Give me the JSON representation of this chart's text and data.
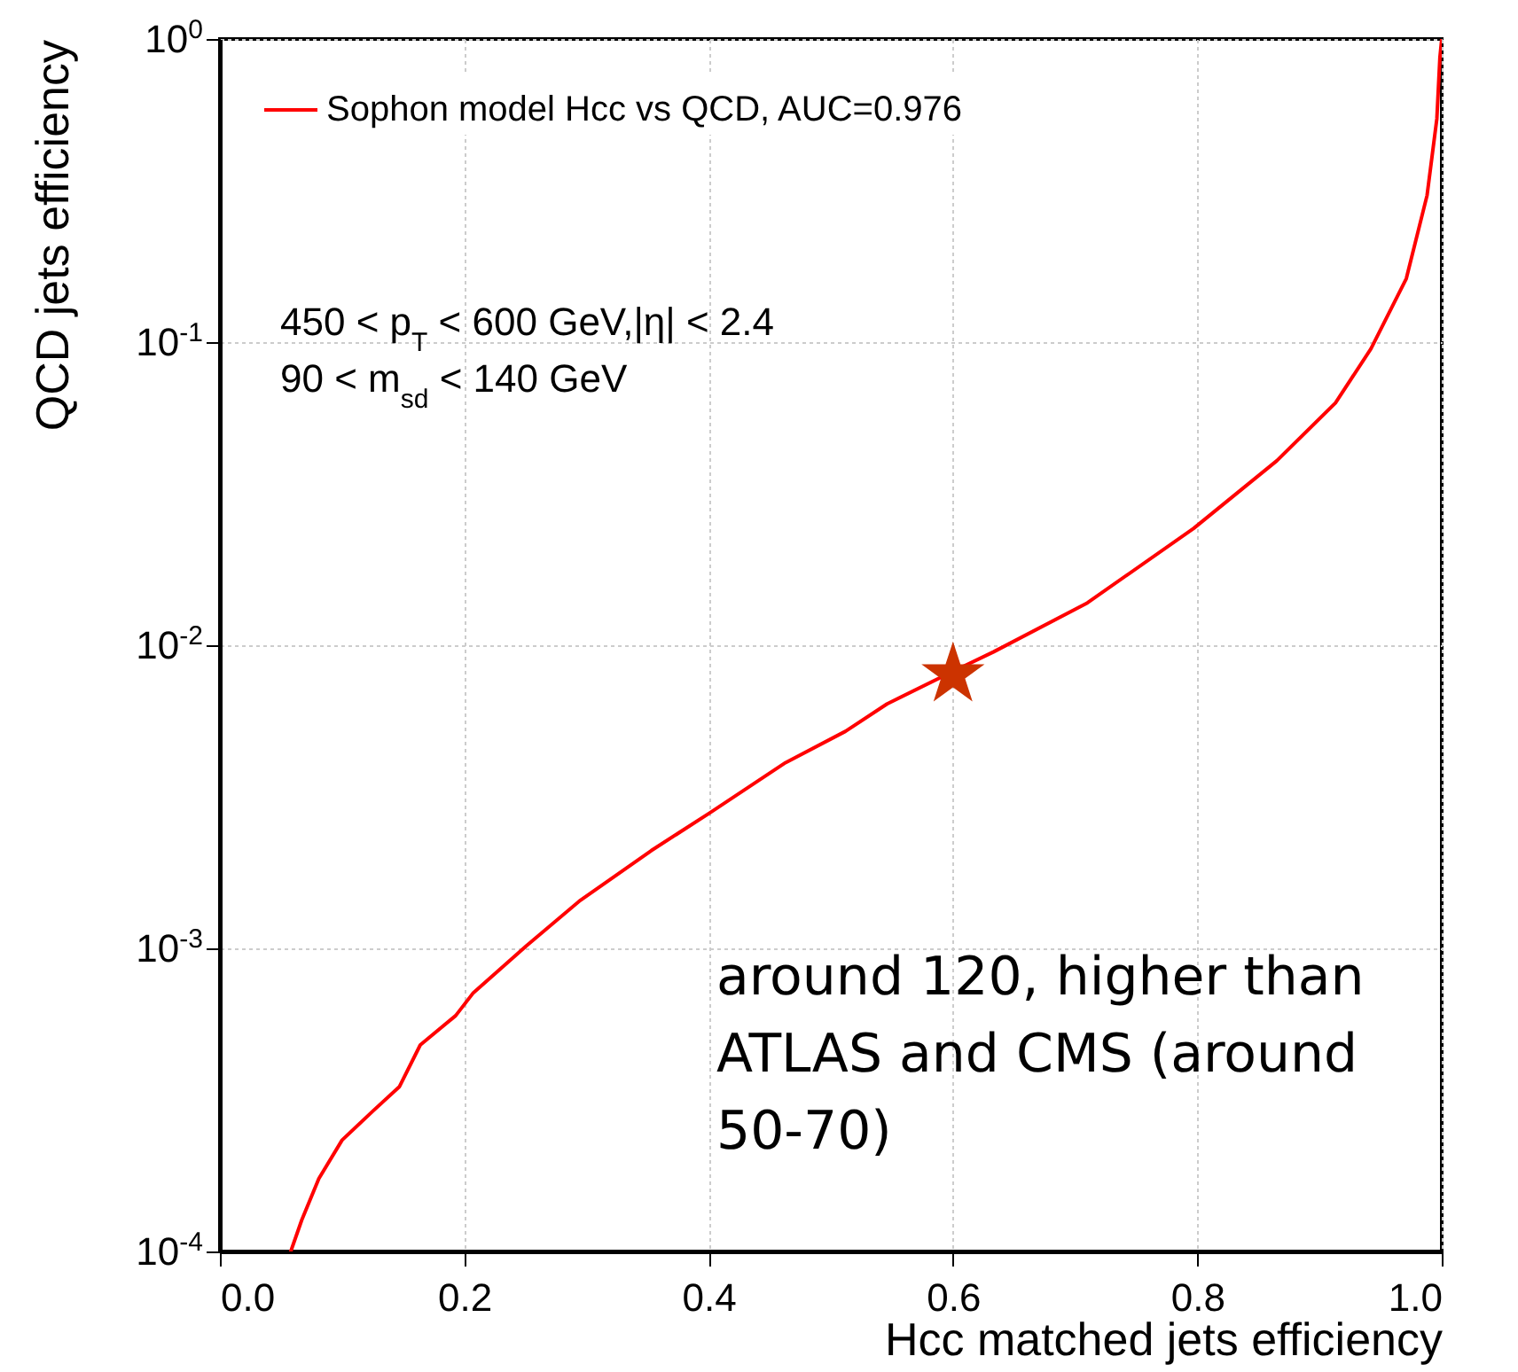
{
  "chart_data": {
    "type": "line",
    "xlabel": "Hcc matched jets efficiency",
    "ylabel": "QCD jets efficiency",
    "annotations": [
      "450 < p$_{T}$ < 600 GeV,|η| < 2.4",
      "90 < m$_{sd}$ < 140 GeV",
      "around 120, higher than\nATLAS and CMS (around\n50-70)"
    ],
    "series": [
      {
        "name": "Sophon model Hcc vs QCD, AUC=0.976",
        "color": "#ff0000",
        "x": [
          0.058,
          0.067,
          0.081,
          0.1,
          0.125,
          0.147,
          0.164,
          0.193,
          0.207,
          0.251,
          0.295,
          0.353,
          0.401,
          0.463,
          0.512,
          0.546,
          0.6,
          0.633,
          0.71,
          0.797,
          0.865,
          0.913,
          0.942,
          0.971,
          0.988,
          0.996,
          0.9985,
          1.0
        ],
        "values": [
          0.0001,
          0.000127,
          0.000174,
          0.000233,
          0.00029,
          0.00035,
          0.00048,
          0.0006,
          0.00071,
          0.00102,
          0.00144,
          0.0021,
          0.0028,
          0.0041,
          0.0052,
          0.0064,
          0.0082,
          0.0095,
          0.0138,
          0.0243,
          0.0406,
          0.063,
          0.095,
          0.162,
          0.305,
          0.546,
          0.87,
          1.0
        ]
      },
      {
        "type": "scatter",
        "marker": "star",
        "color": "#cc3300",
        "x": [
          0.6
        ],
        "values": [
          0.008
        ]
      }
    ],
    "xlim": [
      0,
      1
    ],
    "ylim": [
      0.0001,
      1
    ],
    "xticks": [
      {
        "value": 0,
        "label": "0.0"
      },
      0.2,
      0.4,
      0.6,
      0.8,
      {
        "value": 1,
        "label": "1.0"
      }
    ],
    "yticks": [
      {
        "value": 0.0001,
        "label": "10$^{-4}$"
      },
      {
        "value": 0.001,
        "label": "10$^{-3}$"
      },
      {
        "value": 0.01,
        "label": "10$^{-2}$"
      },
      {
        "value": 0.1,
        "label": "10$^{-1}$"
      },
      {
        "value": 1,
        "label": "10$^{0}$"
      }
    ],
    "log": true,
    "grid": true,
    "legend": "top left"
  }
}
